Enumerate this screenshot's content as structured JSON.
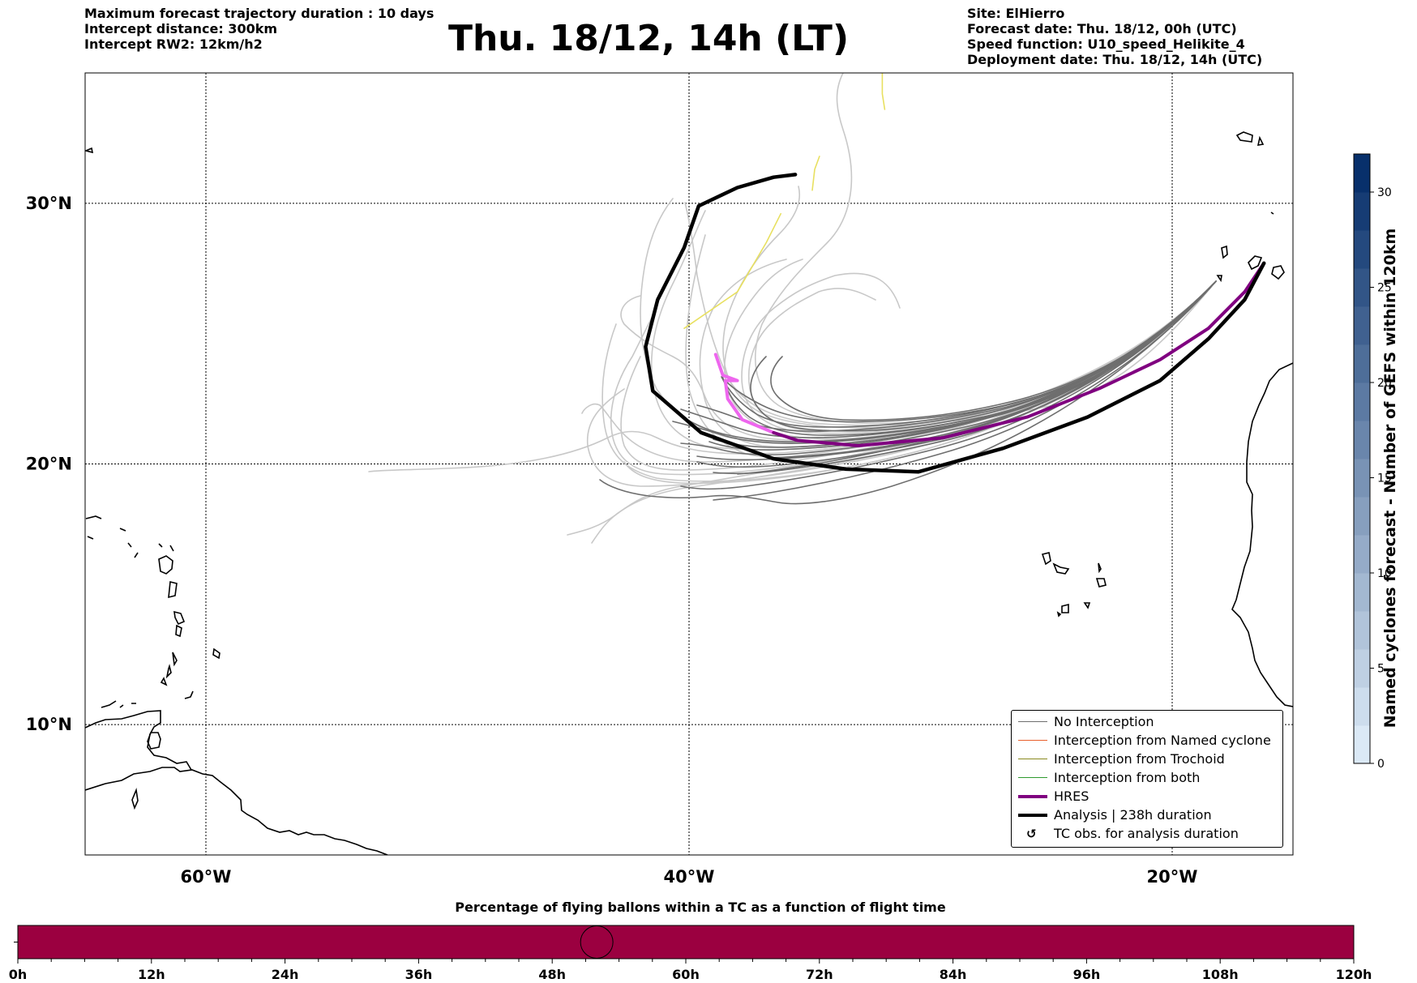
{
  "header_left": [
    "Maximum forecast trajectory duration : 10 days",
    "Intercept distance: 300km",
    "Intercept RW2: 12km/h2"
  ],
  "title": "Thu. 18/12, 14h (LT)",
  "header_right": [
    "Site: ElHierro",
    "Forecast date: Thu. 18/12, 00h (UTC)",
    "Speed function: U10_speed_Helikite_4",
    "Deployment date: Thu. 18/12, 14h (UTC)"
  ],
  "colors": {
    "no_interception": "#6e6e6e",
    "no_interception_light": "#c8c8c8",
    "named_cyclone": "#e8602c",
    "trochoid": "#8a8a1e",
    "both": "#2e9a2e",
    "hres": "#800080",
    "hres_light": "#ee66ee",
    "analysis": "#000000",
    "yellow": "#e8e060",
    "cbar_low": "#dbe9f6",
    "cbar_high": "#08306b",
    "bottom_bar": "#9b0040"
  },
  "legend": [
    {
      "label": "No Interception",
      "style": "no_interception"
    },
    {
      "label": "Interception from Named cyclone",
      "style": "named_cyclone"
    },
    {
      "label": "Interception from Trochoid",
      "style": "trochoid"
    },
    {
      "label": "Interception from both",
      "style": "both"
    },
    {
      "label": "HRES",
      "style": "hres"
    },
    {
      "label": "Analysis | 238h duration",
      "style": "analysis"
    },
    {
      "label": "TC obs. for analysis duration",
      "style": "tc_obs"
    }
  ],
  "colorbar": {
    "label": "Named cyclones forecast - Number of GEFS within 120km",
    "min": 0,
    "max": 32,
    "ticks": [
      0,
      5,
      10,
      15,
      20,
      25,
      30
    ],
    "levels": 16
  },
  "subtitle": "Percentage of flying ballons within a TC as a function of flight time",
  "chart_data": {
    "type": "line",
    "title": "Thu. 18/12, 14h (LT)",
    "map_extent": {
      "lon": [
        -65,
        -15
      ],
      "lat": [
        5,
        35
      ]
    },
    "lon_ticks": [
      {
        "value": -60,
        "label": "60°W"
      },
      {
        "value": -40,
        "label": "40°W"
      },
      {
        "value": -20,
        "label": "20°W"
      }
    ],
    "lat_ticks": [
      {
        "value": 30,
        "label": "30°N"
      },
      {
        "value": 20,
        "label": "20°N"
      },
      {
        "value": 10,
        "label": "10°N"
      }
    ],
    "grid": true,
    "series": [
      {
        "name": "HRES",
        "style": "hres",
        "lonlat": [
          [
            -16.2,
            27.7
          ],
          [
            -17.0,
            26.6
          ],
          [
            -18.5,
            25.2
          ],
          [
            -20.5,
            24.0
          ],
          [
            -23.0,
            22.9
          ],
          [
            -26.0,
            21.8
          ],
          [
            -29.5,
            21.0
          ],
          [
            -33.0,
            20.7
          ],
          [
            -35.5,
            20.9
          ],
          [
            -36.5,
            21.2
          ]
        ]
      },
      {
        "name": "HRES early segment",
        "style": "hres_light",
        "lonlat": [
          [
            -36.5,
            21.2
          ],
          [
            -37.8,
            21.7
          ],
          [
            -38.4,
            22.5
          ],
          [
            -38.5,
            23.2
          ],
          [
            -38.0,
            23.2
          ],
          [
            -38.6,
            23.4
          ],
          [
            -38.9,
            24.2
          ]
        ]
      },
      {
        "name": "Analysis | 238h duration",
        "style": "analysis",
        "lonlat": [
          [
            -16.2,
            27.7
          ],
          [
            -17.0,
            26.3
          ],
          [
            -18.5,
            24.8
          ],
          [
            -20.5,
            23.2
          ],
          [
            -23.5,
            21.8
          ],
          [
            -27.0,
            20.6
          ],
          [
            -30.5,
            19.7
          ],
          [
            -33.5,
            19.8
          ],
          [
            -36.5,
            20.2
          ],
          [
            -39.5,
            21.2
          ],
          [
            -41.5,
            22.8
          ],
          [
            -41.8,
            24.5
          ],
          [
            -41.3,
            26.3
          ],
          [
            -40.2,
            28.3
          ],
          [
            -39.6,
            29.9
          ],
          [
            -38.0,
            30.6
          ],
          [
            -36.5,
            31.0
          ],
          [
            -35.6,
            31.1
          ]
        ]
      },
      {
        "name": "Trajectory member (yellow)",
        "style": "yellow",
        "lonlat": [
          [
            -40.2,
            25.2
          ],
          [
            -38.0,
            26.6
          ],
          [
            -36.8,
            28.5
          ],
          [
            -36.2,
            29.6
          ]
        ]
      },
      {
        "name": "Trajectory member (yellow)",
        "style": "yellow",
        "lonlat": [
          [
            -34.9,
            30.5
          ],
          [
            -34.8,
            31.3
          ],
          [
            -34.6,
            31.8
          ]
        ]
      },
      {
        "name": "Trajectory member (yellow)",
        "style": "yellow",
        "lonlat": [
          [
            -32.0,
            35.0
          ],
          [
            -32.0,
            34.2
          ],
          [
            -31.9,
            33.6
          ]
        ]
      }
    ],
    "no_interception_members": 30,
    "tc_obs_markers": 0,
    "bottom_axis": {
      "title": "Percentage of flying ballons within a TC as a function of flight time",
      "range_hours": [
        0,
        120
      ],
      "ticks": [
        "0h",
        "12h",
        "24h",
        "36h",
        "48h",
        "60h",
        "72h",
        "84h",
        "96h",
        "108h",
        "120h"
      ],
      "circle_marker_hour": 52
    }
  }
}
